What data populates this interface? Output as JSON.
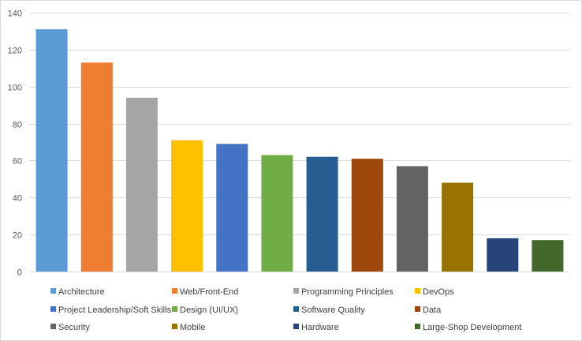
{
  "chart_data": {
    "type": "bar",
    "title": "",
    "xlabel": "",
    "ylabel": "",
    "ylim": [
      0,
      140
    ],
    "yticks": [
      0,
      20,
      40,
      60,
      80,
      100,
      120,
      140
    ],
    "grid": true,
    "legend_position": "bottom",
    "categories": [
      "Architecture",
      "Web/Front-End",
      "Programming Principles",
      "DevOps",
      "Project Leadership/Soft Skills",
      "Design (UI/UX)",
      "Software Quality",
      "Data",
      "Security",
      "Mobile",
      "Hardware",
      "Large-Shop Development"
    ],
    "values": [
      131,
      113,
      94,
      71,
      69,
      63,
      62,
      61,
      57,
      48,
      18,
      17
    ],
    "colors": [
      "#5b9bd5",
      "#ed7d31",
      "#a5a5a5",
      "#ffc000",
      "#4472c4",
      "#70ad47",
      "#255e91",
      "#9e480e",
      "#636363",
      "#997300",
      "#264478",
      "#43682b"
    ],
    "gridline_color": "#d9d9d9",
    "axis_color": "#d9d9d9"
  }
}
